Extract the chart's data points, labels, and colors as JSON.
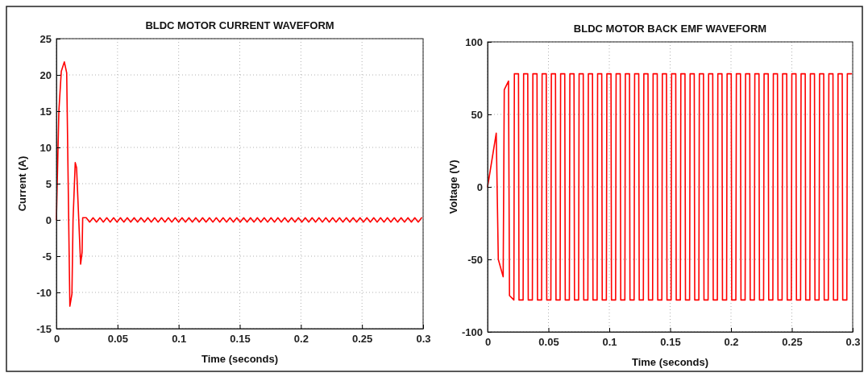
{
  "chart_data": [
    {
      "type": "line",
      "title": "BLDC MOTOR CURRENT WAVEFORM",
      "xlabel": "Time (seconds)",
      "ylabel": "Current (A)",
      "xlim": [
        0,
        0.3
      ],
      "ylim": [
        -15,
        25
      ],
      "xticks": [
        0,
        0.05,
        0.1,
        0.15,
        0.2,
        0.25,
        0.3
      ],
      "yticks": [
        -15,
        -10,
        -5,
        0,
        5,
        10,
        15,
        20,
        25
      ],
      "grid": true,
      "series": [
        {
          "color": "#ff0000",
          "x": [
            0,
            0.002,
            0.004,
            0.0065,
            0.0084,
            0.011,
            0.0127,
            0.0136,
            0.0154,
            0.0165,
            0.0198,
            0.021,
            0.0215,
            0.0244,
            0.0272,
            0.03,
            0.0328,
            0.0356,
            0.0384,
            0.0412,
            0.044,
            0.0468,
            0.0496,
            0.0524,
            0.0552,
            0.058,
            0.0608,
            0.0636,
            0.0664,
            0.0692,
            0.072,
            0.0748,
            0.0776,
            0.0804,
            0.0832,
            0.086,
            0.0888,
            0.0916,
            0.0944,
            0.0972,
            0.1,
            0.1028,
            0.1056,
            0.1084,
            0.1112,
            0.114,
            0.1168,
            0.1196,
            0.1224,
            0.1252,
            0.128,
            0.1308,
            0.1336,
            0.1364,
            0.1392,
            0.142,
            0.1448,
            0.1476,
            0.1504,
            0.1532,
            0.156,
            0.1588,
            0.1616,
            0.1644,
            0.1672,
            0.17,
            0.1728,
            0.1756,
            0.1784,
            0.1812,
            0.184,
            0.1868,
            0.1896,
            0.1924,
            0.1952,
            0.198,
            0.2008,
            0.2036,
            0.2064,
            0.2092,
            0.212,
            0.2148,
            0.2176,
            0.2204,
            0.2232,
            0.226,
            0.2288,
            0.2316,
            0.2344,
            0.2372,
            0.24,
            0.2428,
            0.2456,
            0.2484,
            0.2512,
            0.254,
            0.2568,
            0.2596,
            0.2624,
            0.2652,
            0.268,
            0.2708,
            0.2736,
            0.2764,
            0.2792,
            0.282,
            0.2848,
            0.2876,
            0.2904,
            0.2932,
            0.296,
            0.2988
          ],
          "values": [
            0,
            15,
            20.5,
            21.8,
            20.3,
            -11.9,
            -10.2,
            0,
            7.9,
            7.2,
            -6.1,
            -4.5,
            0.3,
            0.3,
            -0.3,
            0.3,
            -0.3,
            0.3,
            -0.3,
            0.3,
            -0.3,
            0.3,
            -0.3,
            0.3,
            -0.3,
            0.3,
            -0.3,
            0.3,
            -0.3,
            0.3,
            -0.3,
            0.3,
            -0.3,
            0.3,
            -0.3,
            0.3,
            -0.3,
            0.3,
            -0.3,
            0.3,
            -0.3,
            0.3,
            -0.3,
            0.3,
            -0.3,
            0.3,
            -0.3,
            0.3,
            -0.3,
            0.3,
            -0.3,
            0.3,
            -0.3,
            0.3,
            -0.3,
            0.3,
            -0.3,
            0.3,
            -0.3,
            0.3,
            -0.3,
            0.3,
            -0.3,
            0.3,
            -0.3,
            0.3,
            -0.3,
            0.3,
            -0.3,
            0.3,
            -0.3,
            0.3,
            -0.3,
            0.3,
            -0.3,
            0.3,
            -0.3,
            0.3,
            -0.3,
            0.3,
            -0.3,
            0.3,
            -0.3,
            0.3,
            -0.3,
            0.3,
            -0.3,
            0.3,
            -0.3,
            0.3,
            -0.3,
            0.3,
            -0.3,
            0.3,
            -0.3,
            0.3,
            -0.3,
            0.3,
            -0.3,
            0.3,
            -0.3,
            0.3,
            -0.3,
            0.3,
            -0.3,
            0.3,
            -0.3,
            0.3,
            -0.3,
            0.3,
            -0.3,
            0.3
          ]
        }
      ]
    },
    {
      "type": "line",
      "title": "BLDC MOTOR BACK EMF WAVEFORM",
      "xlabel": "Time (seconds)",
      "ylabel": "Voltage (V)",
      "xlim": [
        0,
        0.3
      ],
      "ylim": [
        -100,
        100
      ],
      "xticks": [
        0,
        0.05,
        0.1,
        0.15,
        0.2,
        0.25,
        0.3
      ],
      "yticks": [
        -100,
        -50,
        0,
        50,
        100
      ],
      "grid": true,
      "series": [
        {
          "color": "#ff0000",
          "x": [
            0,
            0.0071,
            0.0088,
            0.0128,
            0.0137,
            0.0172,
            0.018,
            0.0216,
            0.022,
            0.0254,
            0.0258,
            0.0292,
            0.0296,
            0.033,
            0.0334,
            0.0368,
            0.0372,
            0.0406,
            0.041,
            0.0444,
            0.0448,
            0.0482,
            0.0486,
            0.052,
            0.0524,
            0.0558,
            0.0562,
            0.0596,
            0.06,
            0.0634,
            0.0638,
            0.0672,
            0.0676,
            0.071,
            0.0714,
            0.0748,
            0.0752,
            0.0786,
            0.079,
            0.0824,
            0.0828,
            0.0862,
            0.0866,
            0.09,
            0.0904,
            0.0938,
            0.0942,
            0.0976,
            0.098,
            0.1014,
            0.1018,
            0.1052,
            0.1056,
            0.109,
            0.1094,
            0.1128,
            0.1132,
            0.1166,
            0.117,
            0.1204,
            0.1208,
            0.1242,
            0.1246,
            0.128,
            0.1284,
            0.1318,
            0.1322,
            0.1356,
            0.136,
            0.1394,
            0.1398,
            0.1432,
            0.1436,
            0.147,
            0.1474,
            0.1508,
            0.1512,
            0.1546,
            0.155,
            0.1584,
            0.1588,
            0.1622,
            0.1626,
            0.166,
            0.1664,
            0.1698,
            0.1702,
            0.1736,
            0.174,
            0.1774,
            0.1778,
            0.1812,
            0.1816,
            0.185,
            0.1854,
            0.1888,
            0.1892,
            0.1926,
            0.193,
            0.1964,
            0.1968,
            0.2002,
            0.2006,
            0.204,
            0.2044,
            0.2078,
            0.2082,
            0.2116,
            0.212,
            0.2154,
            0.2158,
            0.2192,
            0.2196,
            0.223,
            0.2234,
            0.2268,
            0.2272,
            0.2306,
            0.231,
            0.2344,
            0.2348,
            0.2382,
            0.2386,
            0.242,
            0.2424,
            0.2458,
            0.2462,
            0.2496,
            0.25,
            0.2534,
            0.2538,
            0.2572,
            0.2576,
            0.261,
            0.2614,
            0.2648,
            0.2652,
            0.2686,
            0.269,
            0.2724,
            0.2728,
            0.2762,
            0.2766,
            0.28,
            0.2804,
            0.2838,
            0.2842,
            0.2876,
            0.288,
            0.2914,
            0.2918,
            0.2952,
            0.2956,
            0.299
          ],
          "values": [
            0,
            37,
            -50,
            -62,
            67,
            73,
            -75,
            -78,
            78,
            78,
            -78,
            -78,
            78,
            78,
            -78,
            -78,
            78,
            78,
            -78,
            -78,
            78,
            78,
            -78,
            -78,
            78,
            78,
            -78,
            -78,
            78,
            78,
            -78,
            -78,
            78,
            78,
            -78,
            -78,
            78,
            78,
            -78,
            -78,
            78,
            78,
            -78,
            -78,
            78,
            78,
            -78,
            -78,
            78,
            78,
            -78,
            -78,
            78,
            78,
            -78,
            -78,
            78,
            78,
            -78,
            -78,
            78,
            78,
            -78,
            -78,
            78,
            78,
            -78,
            -78,
            78,
            78,
            -78,
            -78,
            78,
            78,
            -78,
            -78,
            78,
            78,
            -78,
            -78,
            78,
            78,
            -78,
            -78,
            78,
            78,
            -78,
            -78,
            78,
            78,
            -78,
            -78,
            78,
            78,
            -78,
            -78,
            78,
            78,
            -78,
            -78,
            78,
            78,
            -78,
            -78,
            78,
            78,
            -78,
            -78,
            78,
            78,
            -78,
            -78,
            78,
            78,
            -78,
            -78,
            78,
            78,
            -78,
            -78,
            78,
            78,
            -78,
            -78,
            78,
            78,
            -78,
            -78,
            78,
            78,
            -78,
            -78,
            78,
            78,
            -78,
            -78,
            78,
            78,
            -78,
            -78,
            78,
            78,
            -78,
            -78,
            78,
            78,
            -78,
            -78,
            78,
            78,
            -78,
            -78,
            78,
            78
          ]
        }
      ]
    }
  ]
}
